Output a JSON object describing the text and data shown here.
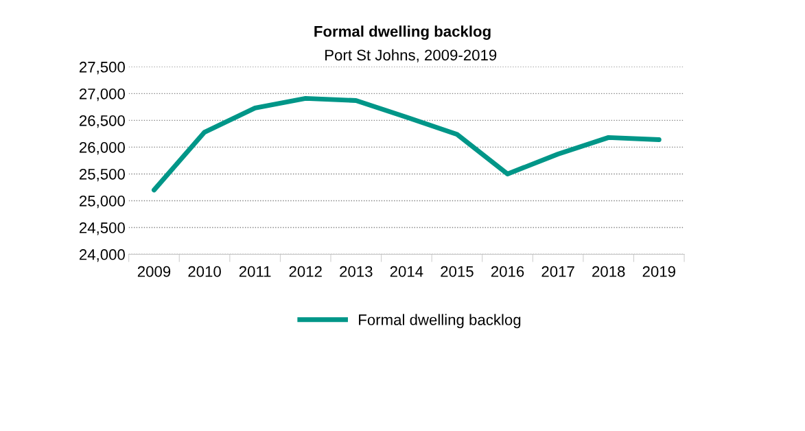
{
  "chart_data": {
    "type": "line",
    "title": "Formal dwelling backlog",
    "subtitle": "Port St Johns, 2009-2019",
    "categories": [
      "2009",
      "2010",
      "2011",
      "2012",
      "2013",
      "2014",
      "2015",
      "2016",
      "2017",
      "2018",
      "2019"
    ],
    "series": [
      {
        "name": "Formal dwelling backlog",
        "color": "#009688",
        "values": [
          25200,
          26280,
          26730,
          26910,
          26870,
          26560,
          26240,
          25500,
          25870,
          26180,
          26140
        ]
      }
    ],
    "ylim": [
      24000,
      27500
    ],
    "yticks": [
      {
        "value": 24000,
        "label": "24,000"
      },
      {
        "value": 24500,
        "label": "24,500"
      },
      {
        "value": 25000,
        "label": "25,000"
      },
      {
        "value": 25500,
        "label": "25,500"
      },
      {
        "value": 26000,
        "label": "26,000"
      },
      {
        "value": 26500,
        "label": "26,500"
      },
      {
        "value": 27000,
        "label": "27,000"
      },
      {
        "value": 27500,
        "label": "27,500"
      }
    ],
    "grid": "y",
    "legend": "bottom",
    "marker": "none",
    "line_style": "solid"
  }
}
